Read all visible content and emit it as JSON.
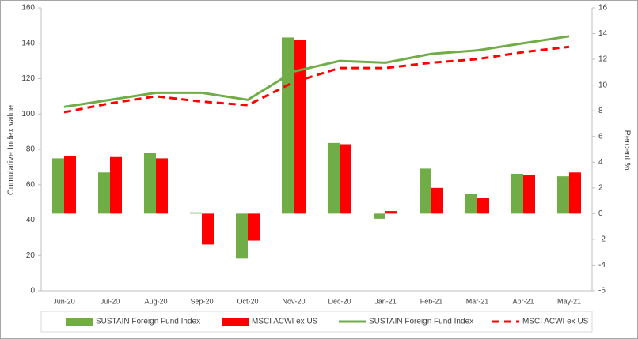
{
  "chart_data": {
    "type": "combo",
    "categories": [
      "Jun-20",
      "Jul-20",
      "Aug-20",
      "Sep-20",
      "Oct-20",
      "Nov-20",
      "Dec-20",
      "Jan-21",
      "Feb-21",
      "Mar-21",
      "Apr-21",
      "May-21"
    ],
    "y_label": "Cumulative Index value",
    "y2_label": "Percent %",
    "ylim": [
      0,
      160
    ],
    "yticks": [
      0,
      20,
      40,
      60,
      80,
      100,
      120,
      140,
      160
    ],
    "y2lim": [
      -6,
      16
    ],
    "y2ticks": [
      -6,
      -4,
      -2,
      0,
      2,
      4,
      6,
      8,
      10,
      12,
      14,
      16
    ],
    "series": [
      {
        "name": "SUSTAIN Foreign Fund Index",
        "type": "bar",
        "axis": "y2",
        "color": "#70ad47",
        "values": [
          4.3,
          3.2,
          4.7,
          0.1,
          -3.5,
          13.7,
          5.5,
          -0.4,
          3.5,
          1.5,
          3.1,
          2.9
        ]
      },
      {
        "name": "MSCI ACWI ex US",
        "type": "bar",
        "axis": "y2",
        "color": "#ff0000",
        "values": [
          4.5,
          4.4,
          4.3,
          -2.4,
          -2.1,
          13.5,
          5.4,
          0.2,
          2.0,
          1.2,
          3.0,
          3.2
        ]
      },
      {
        "name": "SUSTAIN Foreign Fund Index",
        "type": "line",
        "axis": "y",
        "color": "#70ad47",
        "dashed": false,
        "values": [
          104,
          108,
          112,
          112,
          108,
          124,
          130,
          129,
          134,
          136,
          140,
          144
        ]
      },
      {
        "name": "MSCI ACWI ex US",
        "type": "line",
        "axis": "y",
        "color": "#ff0000",
        "dashed": true,
        "values": [
          101,
          106,
          110,
          107,
          105,
          118,
          126,
          126,
          129,
          131,
          135,
          138
        ]
      }
    ]
  }
}
